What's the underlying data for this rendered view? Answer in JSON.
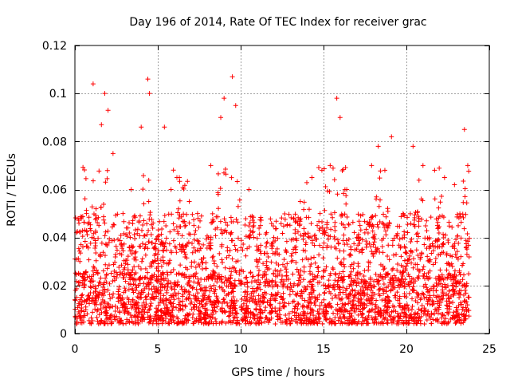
{
  "chart_data": {
    "type": "scatter",
    "title": "Day 196 of 2014, Rate Of TEC Index for receiver grac",
    "xlabel": "GPS time / hours",
    "ylabel": "ROTI / TECUs",
    "xlim": [
      0,
      25
    ],
    "ylim": [
      0,
      0.12
    ],
    "x_ticks": [
      0,
      5,
      10,
      15,
      20,
      25
    ],
    "y_ticks": [
      0,
      0.02,
      0.04,
      0.06,
      0.08,
      0.1,
      0.12
    ],
    "x_tick_labels": [
      "0",
      "5",
      "10",
      "15",
      "20",
      "25"
    ],
    "y_tick_labels": [
      "0",
      "0.02",
      "0.04",
      "0.06",
      "0.08",
      "0.1",
      "0.12"
    ],
    "grid": true,
    "marker": "+",
    "marker_color": "#ff0000",
    "series": [
      {
        "name": "ROTI",
        "x": [
          0.1,
          0.3,
          0.5,
          0.7,
          1.1,
          1.6,
          1.8,
          2.0,
          2.3,
          2.9,
          3.4,
          4.0,
          4.4,
          4.5,
          5.4,
          5.8,
          6.3,
          6.9,
          7.4,
          8.2,
          8.8,
          9.0,
          9.5,
          9.7,
          10.5,
          11.2,
          12.0,
          12.8,
          13.6,
          14.3,
          14.9,
          15.4,
          15.8,
          16.0,
          16.4,
          17.2,
          17.9,
          18.3,
          18.7,
          19.1,
          19.8,
          20.4,
          21.0,
          21.7,
          22.3,
          22.9,
          23.5,
          23.7
        ],
        "y": [
          0.042,
          0.03,
          0.025,
          0.05,
          0.104,
          0.087,
          0.1,
          0.093,
          0.075,
          0.05,
          0.06,
          0.086,
          0.106,
          0.1,
          0.086,
          0.06,
          0.065,
          0.055,
          0.05,
          0.07,
          0.09,
          0.098,
          0.107,
          0.095,
          0.06,
          0.045,
          0.04,
          0.045,
          0.055,
          0.065,
          0.068,
          0.07,
          0.098,
          0.09,
          0.06,
          0.045,
          0.07,
          0.078,
          0.068,
          0.082,
          0.05,
          0.078,
          0.07,
          0.068,
          0.065,
          0.062,
          0.085,
          0.07
        ]
      }
    ],
    "density": {
      "x_range": [
        0.0,
        23.8
      ],
      "baseline_band": [
        0.004,
        0.025
      ],
      "typical_envelope": [
        0.025,
        0.05
      ],
      "peak_windows_hours": [
        [
          0.3,
          0.8
        ],
        [
          1.0,
          2.3
        ],
        [
          4.1,
          4.6
        ],
        [
          5.8,
          6.8
        ],
        [
          8.6,
          10.0
        ],
        [
          13.8,
          16.4
        ],
        [
          17.6,
          19.0
        ],
        [
          20.3,
          21.0
        ],
        [
          21.6,
          22.2
        ],
        [
          23.2,
          23.8
        ]
      ]
    }
  }
}
